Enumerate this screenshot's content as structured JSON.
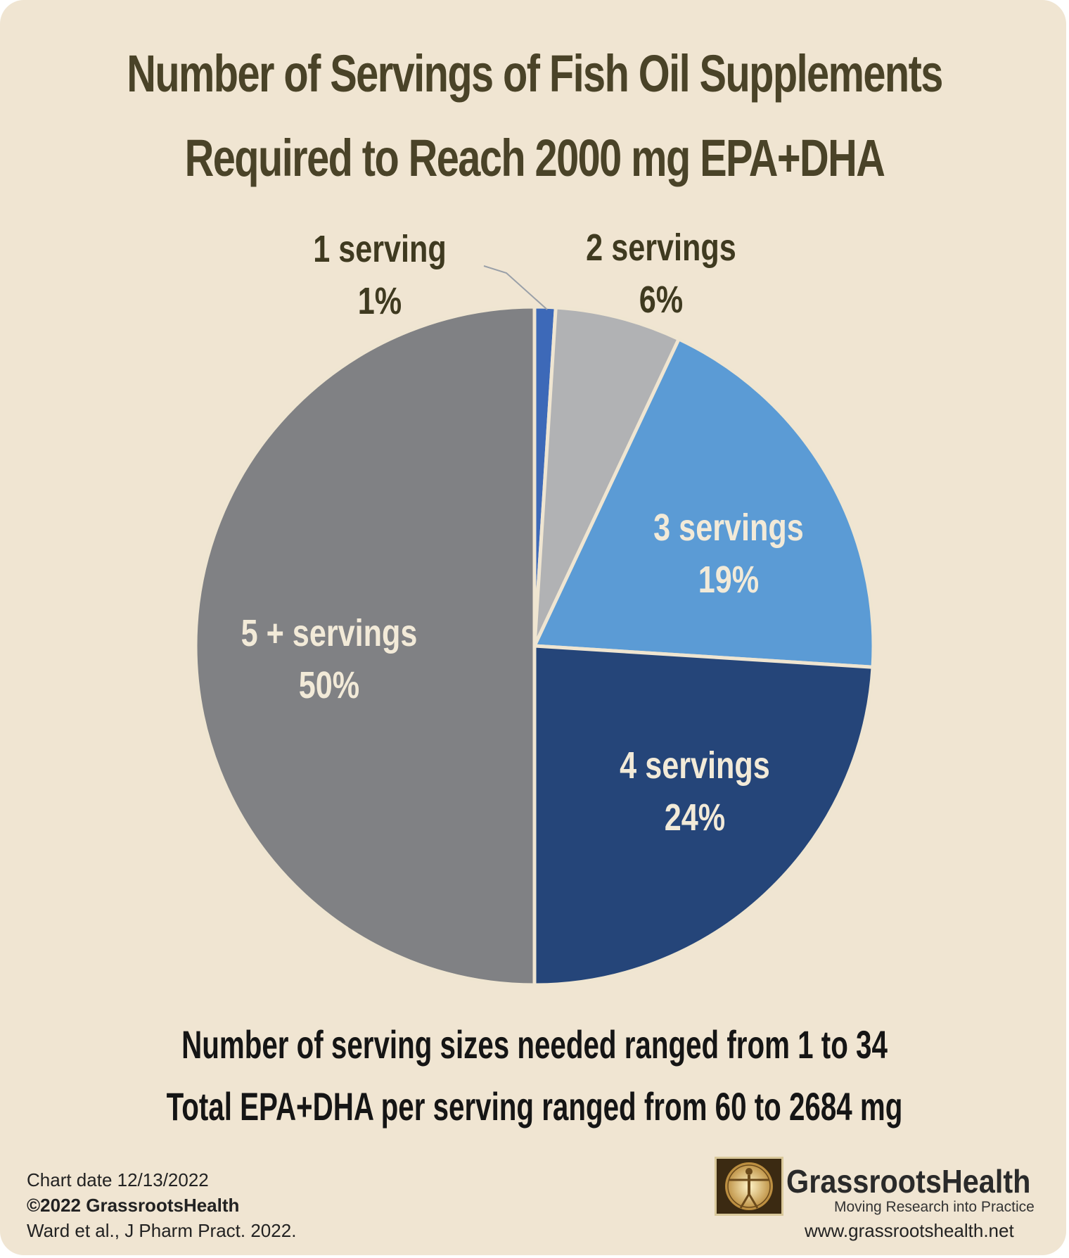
{
  "title_line1": "Number of Servings of Fish Oil Supplements",
  "title_line2": "Required to Reach 2000 mg EPA+DHA",
  "chart_data": {
    "type": "pie",
    "title": "Number of Servings of Fish Oil Supplements Required to Reach 2000 mg EPA+DHA",
    "slices": [
      {
        "label": "1 serving",
        "percent_label": "1%",
        "value": 1,
        "color": "#3d69b8",
        "text_color": "#3f3a20"
      },
      {
        "label": "2 servings",
        "percent_label": "6%",
        "value": 6,
        "color": "#b1b2b4",
        "text_color": "#3f3a20"
      },
      {
        "label": "3 servings",
        "percent_label": "19%",
        "value": 19,
        "color": "#5b9bd5",
        "text_color": "#f2ead8"
      },
      {
        "label": "4 servings",
        "percent_label": "24%",
        "value": 24,
        "color": "#254579",
        "text_color": "#f2ead8"
      },
      {
        "label": "5 + servings",
        "percent_label": "50%",
        "value": 50,
        "color": "#808184",
        "text_color": "#f2ead8"
      }
    ],
    "slice_border_color": "#efe5d1"
  },
  "notes": {
    "line1": "Number of serving sizes needed ranged from 1 to 34",
    "line2": "Total EPA+DHA per serving ranged from 60 to 2684 mg"
  },
  "footer": {
    "chart_date": "Chart date 12/13/2022",
    "copyright": "©2022 GrassrootsHealth",
    "citation": "Ward et al., J Pharm Pract. 2022."
  },
  "brand": {
    "name": "GrassrootsHealth",
    "tagline": "Moving Research into Practice",
    "website": "www.grassrootshealth.net",
    "logo_icon": "vitruvian-man-icon"
  },
  "colors": {
    "background": "#f0e5d2",
    "title": "#4a4328"
  }
}
